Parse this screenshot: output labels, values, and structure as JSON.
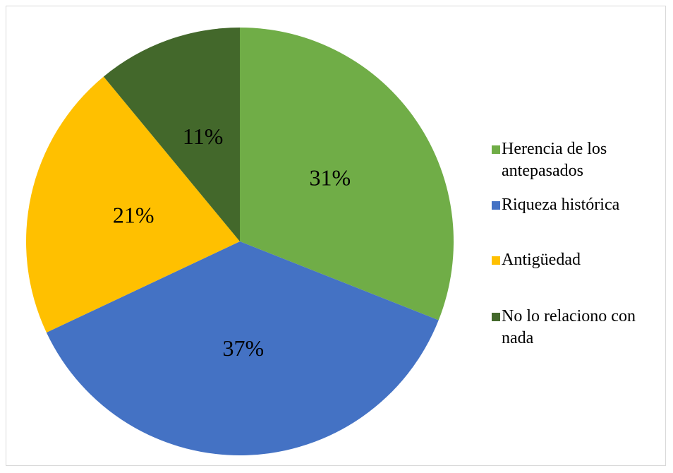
{
  "chart_data": {
    "type": "pie",
    "categories": [
      "Herencia de los antepasados",
      "Riqueza histórica",
      "Antigüedad",
      "No lo relaciono con nada"
    ],
    "values": [
      31,
      37,
      21,
      11
    ],
    "value_labels": [
      "31%",
      "37%",
      "21%",
      "11%"
    ],
    "colors": [
      "#70ad47",
      "#4472c4",
      "#ffc000",
      "#43682b"
    ],
    "legend": "right"
  }
}
